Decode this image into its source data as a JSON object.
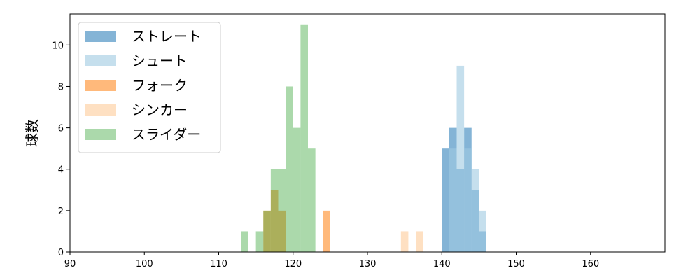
{
  "chart_data": {
    "type": "histogram",
    "title": "",
    "xlabel": "",
    "ylabel": "球数",
    "xlim": [
      90,
      170
    ],
    "ylim": [
      0,
      11.5
    ],
    "xticks": [
      90,
      100,
      110,
      120,
      130,
      140,
      150,
      160
    ],
    "yticks": [
      0,
      2,
      4,
      6,
      8,
      10
    ],
    "grid": false,
    "legend_position": "top-left",
    "bin_width": 1,
    "series": [
      {
        "name": "ストレート",
        "color": "#1f77b4",
        "opacity": 0.55,
        "bins": [
          [
            140.0,
            5
          ],
          [
            141.0,
            6
          ],
          [
            142.0,
            4
          ],
          [
            143.0,
            6
          ],
          [
            144.0,
            3
          ],
          [
            145.0,
            1
          ]
        ]
      },
      {
        "name": "シュート",
        "color": "#9ecae1",
        "opacity": 0.6,
        "bins": [
          [
            141.0,
            5
          ],
          [
            142.0,
            9
          ],
          [
            143.0,
            5
          ],
          [
            144.0,
            4
          ],
          [
            145.0,
            2
          ]
        ]
      },
      {
        "name": "フォーク",
        "color": "#ff7f0e",
        "opacity": 0.55,
        "bins": [
          [
            116.0,
            2
          ],
          [
            117.0,
            3
          ],
          [
            118.0,
            2
          ],
          [
            124.0,
            2
          ]
        ]
      },
      {
        "name": "シンカー",
        "color": "#fdd0a2",
        "opacity": 0.65,
        "bins": [
          [
            134.5,
            1
          ],
          [
            136.5,
            1
          ]
        ]
      },
      {
        "name": "スライダー",
        "color": "#2ca02c",
        "opacity": 0.4,
        "bins": [
          [
            113.0,
            1
          ],
          [
            115.0,
            1
          ],
          [
            116.0,
            2
          ],
          [
            117.0,
            4
          ],
          [
            118.0,
            4
          ],
          [
            119.0,
            8
          ],
          [
            120.0,
            6
          ],
          [
            121.0,
            11
          ],
          [
            122.0,
            5
          ]
        ]
      }
    ]
  }
}
